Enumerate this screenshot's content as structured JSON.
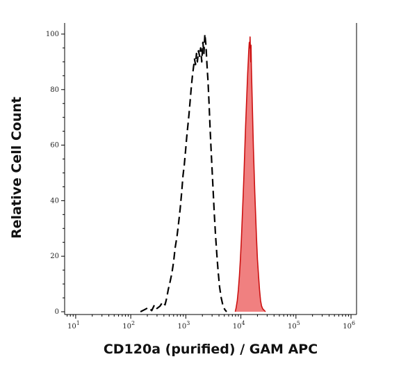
{
  "chart_data": {
    "type": "area",
    "title": "",
    "xlabel": "CD120a (purified) / GAM APC",
    "ylabel": "Relative Cell Count",
    "x_scale": "log",
    "xlim": [
      6.3,
      1260000
    ],
    "ylim": [
      -1,
      104
    ],
    "x_ticks": [
      {
        "value": 10,
        "label": "10",
        "exp": "1"
      },
      {
        "value": 100,
        "label": "10",
        "exp": "2"
      },
      {
        "value": 1000,
        "label": "10",
        "exp": "3"
      },
      {
        "value": 10000,
        "label": "10",
        "exp": "4"
      },
      {
        "value": 100000,
        "label": "10",
        "exp": "5"
      },
      {
        "value": 1000000,
        "label": "10",
        "exp": "6"
      }
    ],
    "y_ticks": [
      0,
      20,
      40,
      60,
      80,
      100
    ],
    "grid": false,
    "legend": "none",
    "series": [
      {
        "style": "dashed-outline",
        "color": "#000000",
        "points": [
          [
            150,
            0
          ],
          [
            180,
            0.8
          ],
          [
            210,
            1.5
          ],
          [
            240,
            0.4
          ],
          [
            270,
            2.5
          ],
          [
            300,
            1.2
          ],
          [
            340,
            2
          ],
          [
            380,
            3.5
          ],
          [
            420,
            2.5
          ],
          [
            450,
            5
          ],
          [
            480,
            8
          ],
          [
            520,
            11
          ],
          [
            560,
            14
          ],
          [
            600,
            18
          ],
          [
            640,
            23
          ],
          [
            690,
            27
          ],
          [
            740,
            32
          ],
          [
            790,
            37
          ],
          [
            840,
            43
          ],
          [
            890,
            49
          ],
          [
            940,
            53
          ],
          [
            990,
            58
          ],
          [
            1040,
            63
          ],
          [
            1090,
            67
          ],
          [
            1140,
            71
          ],
          [
            1200,
            76
          ],
          [
            1260,
            81
          ],
          [
            1320,
            85
          ],
          [
            1380,
            88
          ],
          [
            1440,
            91
          ],
          [
            1500,
            89
          ],
          [
            1560,
            93
          ],
          [
            1620,
            90
          ],
          [
            1700,
            94
          ],
          [
            1780,
            92
          ],
          [
            1860,
            95
          ],
          [
            1950,
            90
          ],
          [
            2040,
            97
          ],
          [
            2130,
            93
          ],
          [
            2220,
            100
          ],
          [
            2320,
            96
          ],
          [
            2420,
            89
          ],
          [
            2530,
            83
          ],
          [
            2640,
            75
          ],
          [
            2760,
            66
          ],
          [
            2880,
            58
          ],
          [
            3000,
            51
          ],
          [
            3150,
            43
          ],
          [
            3300,
            35
          ],
          [
            3450,
            28
          ],
          [
            3650,
            21
          ],
          [
            3850,
            15
          ],
          [
            4100,
            9
          ],
          [
            4400,
            5
          ],
          [
            4750,
            2
          ],
          [
            5100,
            0.8
          ],
          [
            5500,
            0
          ]
        ]
      },
      {
        "style": "filled",
        "color": "#f08080",
        "stroke": "#cc1111",
        "points": [
          [
            7900,
            0
          ],
          [
            8200,
            1.5
          ],
          [
            8600,
            4
          ],
          [
            9000,
            8
          ],
          [
            9400,
            13
          ],
          [
            9800,
            19
          ],
          [
            10200,
            26
          ],
          [
            10600,
            34
          ],
          [
            11000,
            42
          ],
          [
            11400,
            50
          ],
          [
            11800,
            59
          ],
          [
            12200,
            67
          ],
          [
            12600,
            74
          ],
          [
            13000,
            81
          ],
          [
            13300,
            86
          ],
          [
            13600,
            90
          ],
          [
            13900,
            94
          ],
          [
            14200,
            97
          ],
          [
            14500,
            95
          ],
          [
            14700,
            99
          ],
          [
            14900,
            95
          ],
          [
            15100,
            90
          ],
          [
            15300,
            96
          ],
          [
            15500,
            88
          ],
          [
            15800,
            82
          ],
          [
            16100,
            75
          ],
          [
            16500,
            67
          ],
          [
            16900,
            59
          ],
          [
            17400,
            51
          ],
          [
            17900,
            43
          ],
          [
            18500,
            35
          ],
          [
            19200,
            27
          ],
          [
            20000,
            19
          ],
          [
            20900,
            13
          ],
          [
            21800,
            8
          ],
          [
            22800,
            4
          ],
          [
            23800,
            2
          ],
          [
            25000,
            1
          ],
          [
            26500,
            0.5
          ],
          [
            28000,
            0
          ]
        ]
      }
    ]
  }
}
